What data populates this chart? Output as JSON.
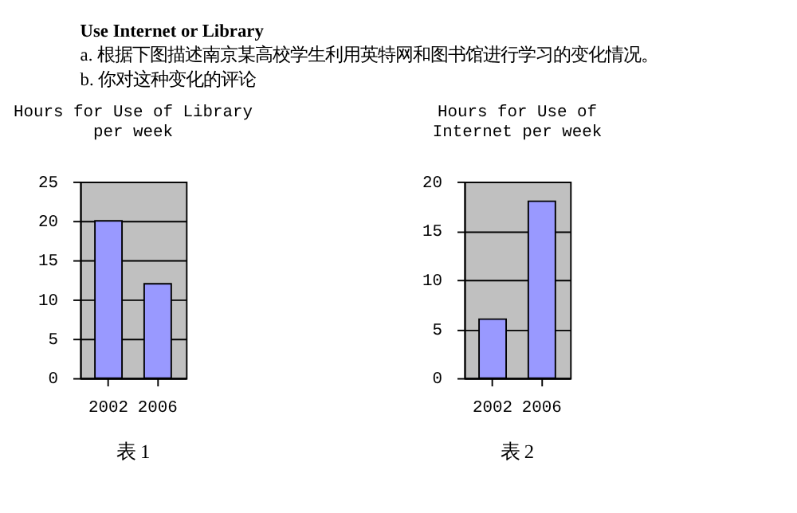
{
  "chart_data": [
    {
      "type": "bar",
      "title": "Hours for Use of Library per week",
      "categories": [
        "2002",
        "2006"
      ],
      "values": [
        20,
        12
      ],
      "color": "#9999ff",
      "ylim": [
        0,
        25
      ],
      "yticks": [
        0,
        5,
        10,
        15,
        20,
        25
      ],
      "grid": "y",
      "annotations": [
        "Use Internet or Library",
        "a. 根据下图描述南京某高校学生利用英特网和图书馆进行学习的变化情况。",
        "b. 你对这种变化的评论",
        "表 1"
      ]
    },
    {
      "type": "bar",
      "title": "Hours for Use of Internet per week",
      "categories": [
        "2002",
        "2006"
      ],
      "values": [
        6,
        18
      ],
      "color": "#9999ff",
      "ylim": [
        0,
        20
      ],
      "yticks": [
        0,
        5,
        10,
        15,
        20
      ],
      "grid": "y",
      "annotations": [
        "表 2"
      ]
    }
  ]
}
